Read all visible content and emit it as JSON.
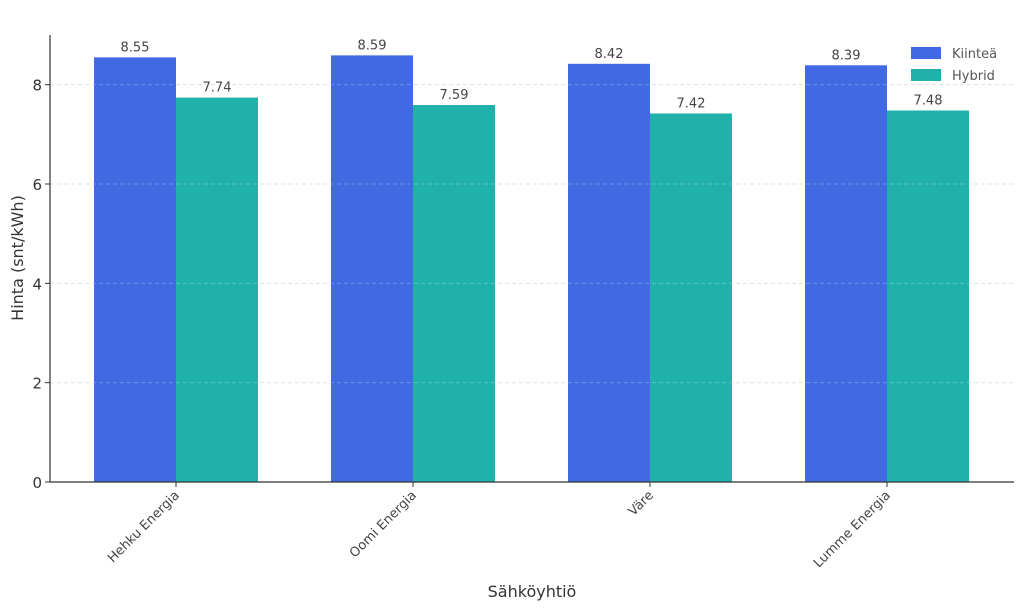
{
  "chart_data": {
    "type": "bar",
    "title": "",
    "xlabel": "Sähköyhtiö",
    "ylabel": "Hinta (snt/kWh)",
    "categories": [
      "Hehku Energia",
      "Oomi Energia",
      "Väre",
      "Lumme Energia"
    ],
    "series": [
      {
        "name": "Kiinteä",
        "color": "#4169e1",
        "values": [
          8.55,
          8.59,
          8.42,
          8.39
        ],
        "labels": [
          "8.55",
          "8.59",
          "8.42",
          "8.39"
        ]
      },
      {
        "name": "Hybrid",
        "color": "#20b2aa",
        "values": [
          7.74,
          7.59,
          7.42,
          7.48
        ],
        "labels": [
          "7.74",
          "7.59",
          "7.42",
          "7.48"
        ]
      }
    ],
    "ylim": [
      0,
      9.0
    ],
    "yticks": [
      0,
      2,
      4,
      6,
      8
    ],
    "ytick_labels": [
      "0",
      "2",
      "4",
      "6",
      "8"
    ],
    "grid": true,
    "legend_position": "top-right"
  }
}
